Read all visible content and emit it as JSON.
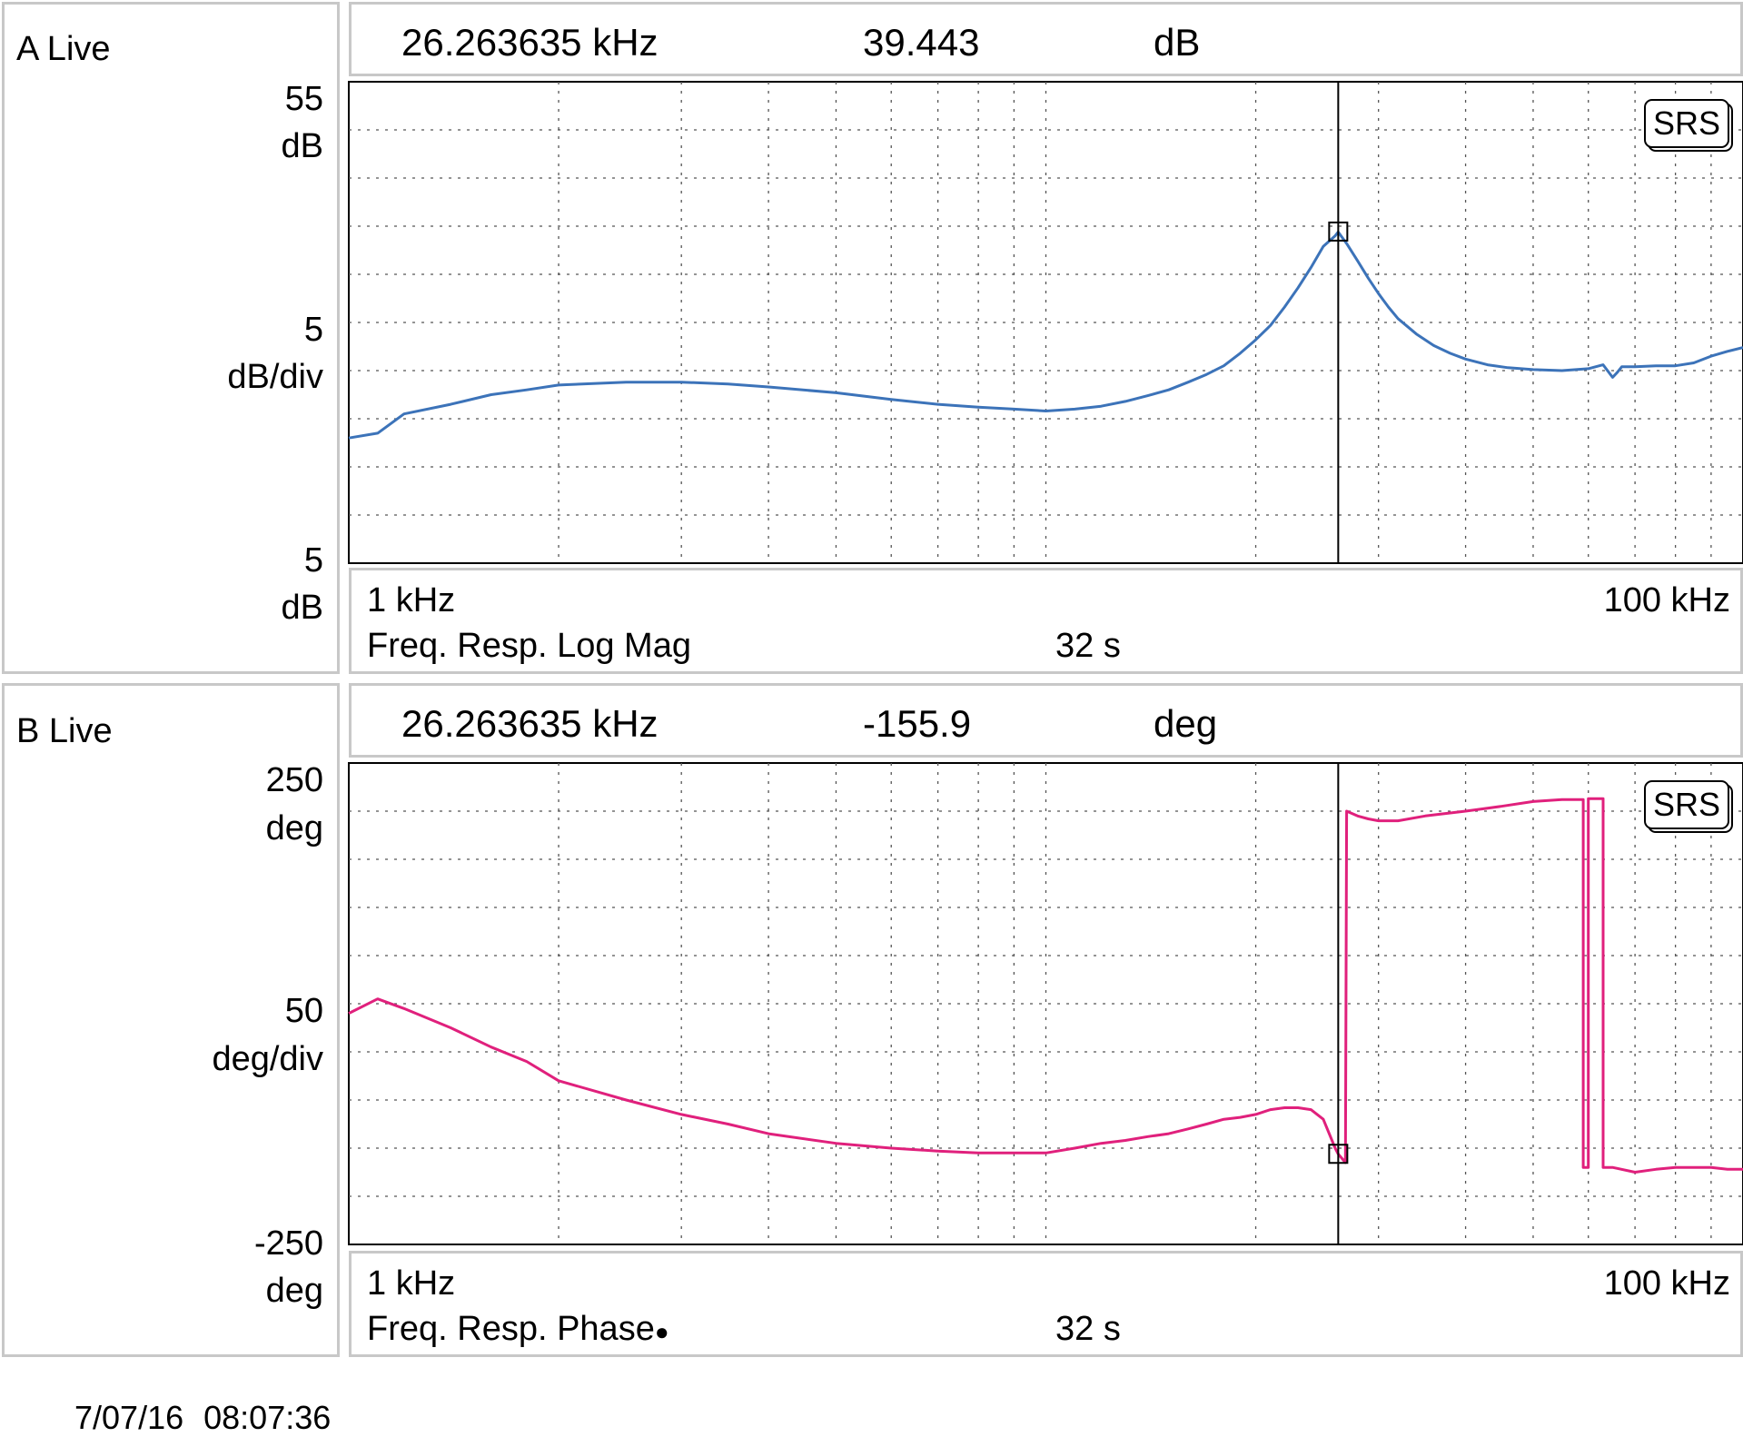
{
  "timestamp": {
    "date": "7/07/16",
    "time": "08:07:36"
  },
  "chart_data": [
    {
      "id": "A",
      "type": "line",
      "panel_label": "A Live",
      "marker": {
        "freq": "26.263635 kHz",
        "value": "39.443",
        "unit": "dB"
      },
      "y_top_label": "55",
      "y_top_unit": "dB",
      "y_mid_label": "5",
      "y_mid_unit": "dB/div",
      "y_bottom_label": "5",
      "y_bottom_unit": "dB",
      "x_start_label": "1 kHz",
      "x_end_label": "100 kHz",
      "measurement": "Freq. Resp. Log Mag",
      "time": "32 s",
      "badge": "SRS",
      "xlim": [
        1,
        100
      ],
      "ylim": [
        5,
        55
      ],
      "x_scale": "log",
      "grid": true,
      "color": "#3c73b9",
      "marker_x": 26.263635,
      "marker_y": 39.443,
      "series": [
        {
          "x": [
            1.0,
            1.1,
            1.2,
            1.4,
            1.6,
            1.8,
            2.0,
            2.5,
            3.0,
            3.5,
            4.0,
            5.0,
            6.0,
            7.0,
            8.0,
            9.0,
            10.0,
            11.0,
            12.0,
            13.0,
            14.0,
            15.0,
            16.0,
            17.0,
            18.0,
            19.0,
            20.0,
            21.0,
            22.0,
            23.0,
            24.0,
            25.0,
            26.0,
            26.26,
            27.0,
            28.0,
            29.0,
            30.0,
            31.0,
            32.0,
            34.0,
            36.0,
            38.0,
            40.0,
            43.0,
            46.0,
            50.0,
            55.0,
            60.0,
            63.0,
            65.0,
            66.0,
            67.0,
            70.0,
            75.0,
            80.0,
            85.0,
            90.0,
            95.0,
            100.0
          ],
          "y": [
            18.0,
            18.5,
            20.5,
            21.5,
            22.5,
            23.0,
            23.5,
            23.8,
            23.8,
            23.6,
            23.3,
            22.7,
            22.0,
            21.5,
            21.2,
            21.0,
            20.8,
            21.0,
            21.3,
            21.8,
            22.4,
            23.0,
            23.8,
            24.6,
            25.5,
            26.8,
            28.2,
            29.7,
            31.6,
            33.6,
            35.7,
            37.9,
            39.0,
            39.4,
            38.2,
            36.4,
            34.6,
            33.0,
            31.6,
            30.4,
            28.8,
            27.6,
            26.8,
            26.2,
            25.6,
            25.3,
            25.1,
            25.0,
            25.2,
            25.6,
            24.3,
            24.8,
            25.4,
            25.4,
            25.5,
            25.5,
            25.8,
            26.5,
            27.0,
            27.4
          ]
        }
      ]
    },
    {
      "id": "B",
      "type": "line",
      "panel_label": "B Live",
      "marker": {
        "freq": "26.263635 kHz",
        "value": "-155.9",
        "unit": "deg"
      },
      "y_top_label": "250",
      "y_top_unit": "deg",
      "y_mid_label": "50",
      "y_mid_unit": "deg/div",
      "y_bottom_label": "-250",
      "y_bottom_unit": "deg",
      "x_start_label": "1 kHz",
      "x_end_label": "100 kHz",
      "measurement": "Freq. Resp. Phase",
      "measurement_dot": "●",
      "time": "32 s",
      "badge": "SRS",
      "xlim": [
        1,
        100
      ],
      "ylim": [
        -250,
        250
      ],
      "x_scale": "log",
      "grid": true,
      "color": "#e0207c",
      "marker_x": 26.263635,
      "marker_y": -155.9,
      "series": [
        {
          "x": [
            1.0,
            1.1,
            1.2,
            1.4,
            1.6,
            1.8,
            2.0,
            2.5,
            3.0,
            3.5,
            4.0,
            5.0,
            6.0,
            7.0,
            8.0,
            9.0,
            10.0,
            11.0,
            12.0,
            13.0,
            14.0,
            15.0,
            16.0,
            17.0,
            18.0,
            19.0,
            20.0,
            21.0,
            22.0,
            23.0,
            24.0,
            25.0,
            26.0,
            26.26,
            26.9,
            27.0,
            28.0,
            29.0,
            30.0,
            32.0,
            35.0,
            40.0,
            45.0,
            50.0,
            55.0,
            59.0,
            59.0,
            60.0,
            60.0,
            63.0,
            63.0,
            64.5,
            65.0,
            70.0,
            75.0,
            80.0,
            85.0,
            90.0,
            95.0,
            100.0
          ],
          "y": [
            -10,
            5,
            -5,
            -25,
            -45,
            -60,
            -80,
            -100,
            -115,
            -125,
            -135,
            -145,
            -150,
            -153,
            -155,
            -155,
            -155,
            -150,
            -145,
            -142,
            -138,
            -135,
            -130,
            -125,
            -120,
            -118,
            -115,
            -110,
            -108,
            -108,
            -110,
            -120,
            -150,
            -156,
            -165,
            200,
            195,
            192,
            190,
            190,
            195,
            200,
            205,
            210,
            212,
            212,
            -170,
            -170,
            213,
            213,
            -170,
            -170,
            -170,
            -175,
            -172,
            -170,
            -170,
            -170,
            -172,
            -172
          ]
        }
      ]
    }
  ]
}
